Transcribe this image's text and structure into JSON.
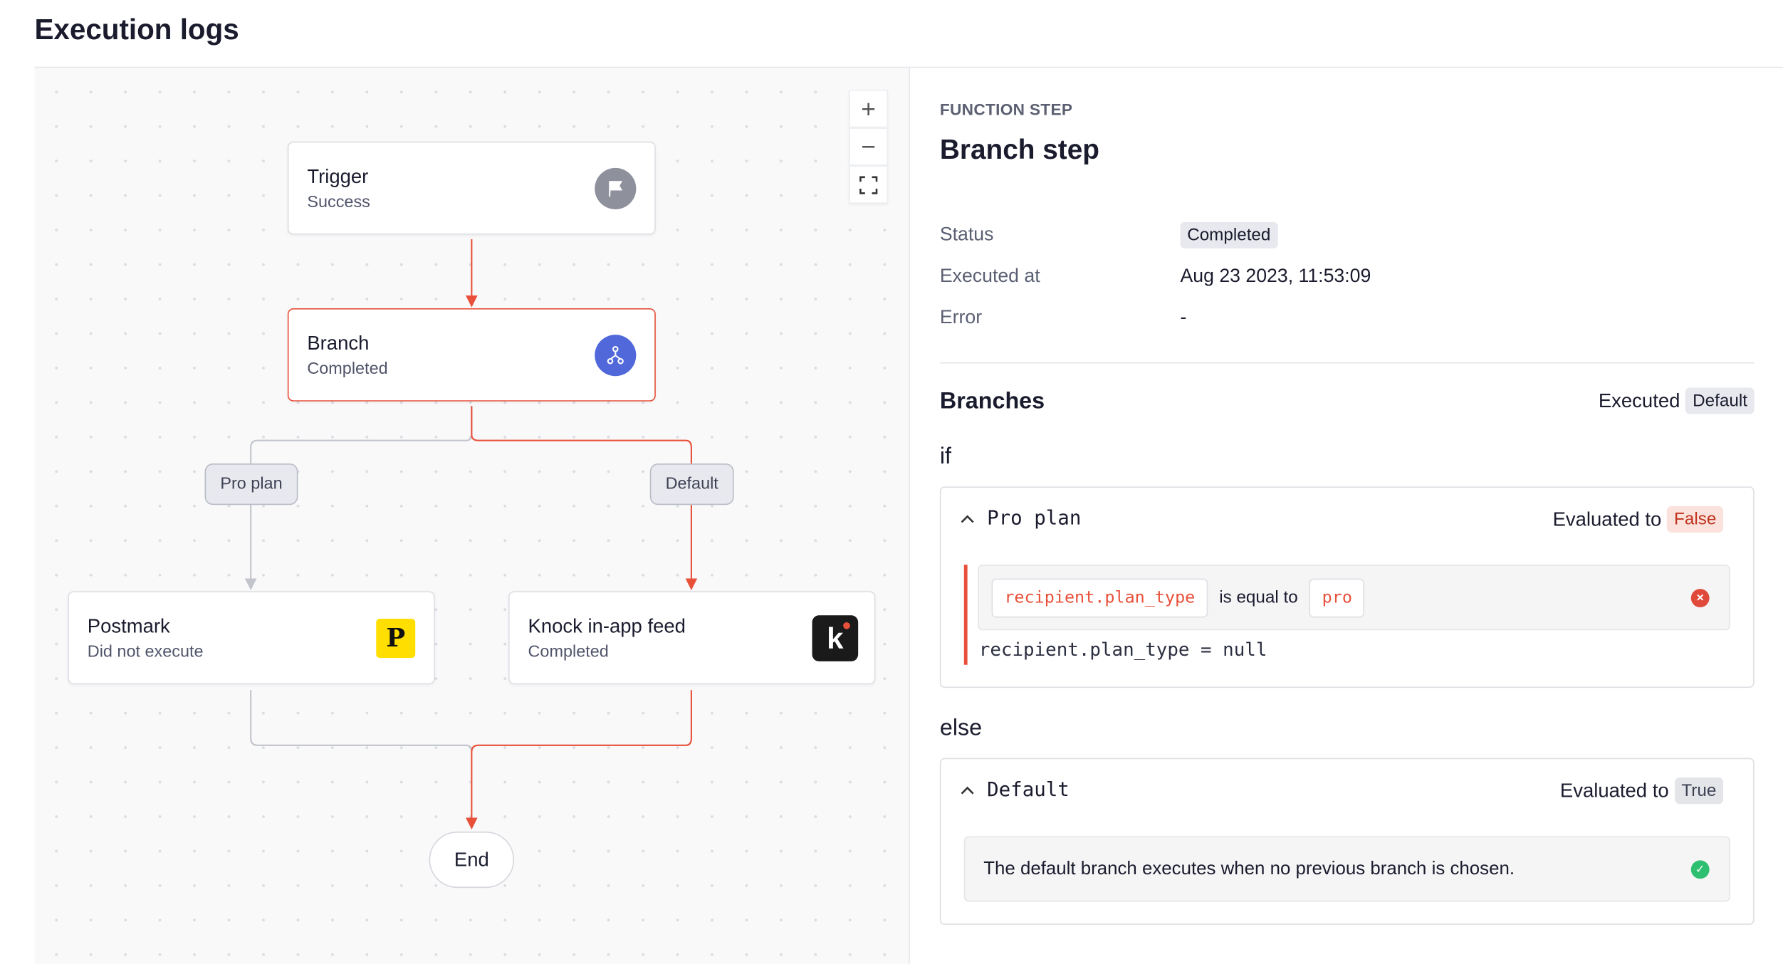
{
  "page": {
    "title": "Execution logs"
  },
  "canvas": {
    "zoom_in": "+",
    "zoom_out": "−",
    "nodes": {
      "trigger": {
        "title": "Trigger",
        "status": "Success",
        "icon": "flag-icon"
      },
      "branch": {
        "title": "Branch",
        "status": "Completed",
        "icon": "branch-icon"
      },
      "postmark": {
        "title": "Postmark",
        "status": "Did not execute",
        "icon": "postmark-logo",
        "logo_letter": "P"
      },
      "knock": {
        "title": "Knock in-app feed",
        "status": "Completed",
        "icon": "knock-logo",
        "logo_letter": "k"
      },
      "end": {
        "title": "End"
      }
    },
    "edge_labels": {
      "pro_plan": "Pro plan",
      "default": "Default"
    },
    "colors": {
      "active_path": "#e8503a",
      "inactive_path": "#c2c4cc",
      "branch_icon": "#5068d9"
    }
  },
  "panel": {
    "kicker": "FUNCTION STEP",
    "title": "Branch step",
    "fields": [
      {
        "label": "Status",
        "value": "Completed"
      },
      {
        "label": "Executed at",
        "value": "Aug 23 2023, 11:53:09"
      },
      {
        "label": "Error",
        "value": "-"
      }
    ],
    "branches": {
      "heading": "Branches",
      "executed_label": "Executed",
      "executed_value": "Default",
      "if_label": "if",
      "else_label": "else",
      "if_branch": {
        "name": "Pro plan",
        "evaluated_label": "Evaluated to",
        "result": "False",
        "condition": {
          "variable": "recipient.plan_type",
          "operator": "is equal to",
          "value": "pro"
        },
        "actual": "recipient.plan_type = null"
      },
      "else_branch": {
        "name": "Default",
        "evaluated_label": "Evaluated to",
        "result": "True",
        "description": "The default branch executes when no previous branch is chosen."
      }
    }
  }
}
